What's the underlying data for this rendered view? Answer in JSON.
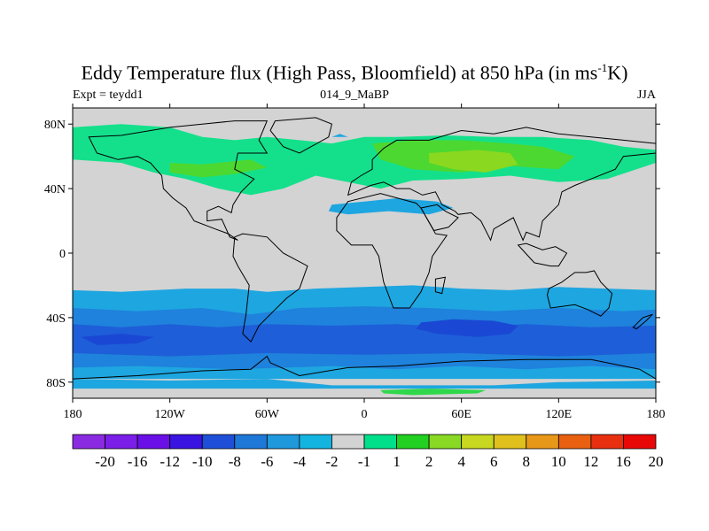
{
  "title": {
    "main": "Eddy Temperature flux (High Pass, Bloomfield) at 850 hPa (in ms",
    "sup": "-1",
    "tail": "K)"
  },
  "subtitle": {
    "left": "Expt = teydd1",
    "center": "014_9_MaBP",
    "right": "JJA"
  },
  "map": {
    "projection": "cylindrical-equidistant",
    "land_color": "#d3d3d3",
    "lon_range": [
      -180,
      180
    ],
    "lat_range": [
      -90,
      90
    ],
    "lat_ticks": [
      {
        "value": 80,
        "label": "80N"
      },
      {
        "value": 40,
        "label": "40N"
      },
      {
        "value": 0,
        "label": "0"
      },
      {
        "value": -40,
        "label": "40S"
      },
      {
        "value": -80,
        "label": "80S"
      }
    ],
    "lon_ticks": [
      {
        "value": -180,
        "label": "180"
      },
      {
        "value": -120,
        "label": "120W"
      },
      {
        "value": -60,
        "label": "60W"
      },
      {
        "value": 0,
        "label": "0"
      },
      {
        "value": 60,
        "label": "60E"
      },
      {
        "value": 120,
        "label": "120E"
      },
      {
        "value": 180,
        "label": "180"
      }
    ]
  },
  "colorbar": {
    "colors": [
      "#8a2be2",
      "#7b1ee8",
      "#6a0fe6",
      "#3a14e0",
      "#1f4fd8",
      "#1e78d8",
      "#1f98dc",
      "#14b4e0",
      "#d3d3d3",
      "#00e08a",
      "#22d022",
      "#88d824",
      "#c8d820",
      "#e0c01c",
      "#e89818",
      "#e86010",
      "#e83010",
      "#e80808"
    ],
    "labels": [
      "-20",
      "-16",
      "-12",
      "-10",
      "-8",
      "-6",
      "-4",
      "-2",
      "-1",
      "1",
      "2",
      "4",
      "6",
      "8",
      "10",
      "12",
      "16",
      "20"
    ]
  },
  "regions": [
    {
      "name": "nh-midlat-band",
      "value": "2"
    },
    {
      "name": "eurasia-core",
      "value": "4"
    },
    {
      "name": "north-america-core",
      "value": "4"
    },
    {
      "name": "mediterranean-low",
      "value": "-6"
    },
    {
      "name": "southern-ocean-band",
      "value": "-6"
    },
    {
      "name": "indian-ocean-min",
      "value": "-10"
    },
    {
      "name": "antarctic-coast-positive",
      "value": "2"
    }
  ],
  "palette": {
    "nhLight": "#14e08c",
    "nhMid": "#4cd830",
    "nhStrong": "#8ad820",
    "shLight": "#1ea6e0",
    "shMid": "#1f82dc",
    "shStrong": "#1e5ed8",
    "shDeep": "#1a48d4",
    "posAnt": "#2fd84a"
  }
}
